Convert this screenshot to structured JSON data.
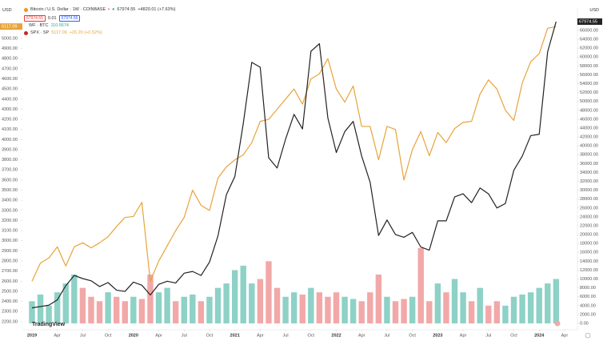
{
  "header": {
    "currency_left": "USD",
    "currency_right": "USD",
    "symbol": "Bitcoin / U.S. Dollar · 1W · COINBASE",
    "change": "+4820.01 (+7.63%)",
    "bid": "67974.55",
    "spread": "0.01",
    "ask": "67974.56",
    "overlay1": "WF · BTC",
    "overlay1_value": "110.5674",
    "overlay2": "SPX · SP",
    "overlay2_change": "+26.20 (+0.52%)",
    "logo": "TradingView"
  },
  "chart_data": {
    "type": "line",
    "x": [
      "2019-01",
      "2019-02",
      "2019-03",
      "2019-04",
      "2019-05",
      "2019-06",
      "2019-07",
      "2019-08",
      "2019-09",
      "2019-10",
      "2019-11",
      "2019-12",
      "2020-01",
      "2020-02",
      "2020-03",
      "2020-04",
      "2020-05",
      "2020-06",
      "2020-07",
      "2020-08",
      "2020-09",
      "2020-10",
      "2020-11",
      "2020-12",
      "2021-01",
      "2021-02",
      "2021-03",
      "2021-04",
      "2021-05",
      "2021-06",
      "2021-07",
      "2021-08",
      "2021-09",
      "2021-10",
      "2021-11",
      "2021-12",
      "2022-01",
      "2022-02",
      "2022-03",
      "2022-04",
      "2022-05",
      "2022-06",
      "2022-07",
      "2022-08",
      "2022-09",
      "2022-10",
      "2022-11",
      "2022-12",
      "2023-01",
      "2023-02",
      "2023-03",
      "2023-04",
      "2023-05",
      "2023-06",
      "2023-07",
      "2023-08",
      "2023-09",
      "2023-10",
      "2023-11",
      "2023-12",
      "2024-01",
      "2024-02",
      "2024-03"
    ],
    "xlim": [
      "2018-12",
      "2024-05"
    ],
    "xticks": [
      {
        "value": "2019-01",
        "label": "2019"
      },
      {
        "value": "2019-04",
        "label": "Apr"
      },
      {
        "value": "2019-07",
        "label": "Jul"
      },
      {
        "value": "2019-10",
        "label": "Oct"
      },
      {
        "value": "2020-01",
        "label": "2020"
      },
      {
        "value": "2020-04",
        "label": "Apr"
      },
      {
        "value": "2020-07",
        "label": "Jul"
      },
      {
        "value": "2020-10",
        "label": "Oct"
      },
      {
        "value": "2021-01",
        "label": "2021"
      },
      {
        "value": "2021-04",
        "label": "Apr"
      },
      {
        "value": "2021-07",
        "label": "Jul"
      },
      {
        "value": "2021-10",
        "label": "Oct"
      },
      {
        "value": "2022-01",
        "label": "2022"
      },
      {
        "value": "2022-04",
        "label": "Apr"
      },
      {
        "value": "2022-07",
        "label": "Jul"
      },
      {
        "value": "2022-10",
        "label": "Oct"
      },
      {
        "value": "2023-01",
        "label": "2023"
      },
      {
        "value": "2023-04",
        "label": "Apr"
      },
      {
        "value": "2023-07",
        "label": "Jul"
      },
      {
        "value": "2023-10",
        "label": "Oct"
      },
      {
        "value": "2024-01",
        "label": "2024"
      },
      {
        "value": "2024-04",
        "label": "Apr"
      }
    ],
    "ylim": [
      2120,
      5158
    ],
    "yticks": [
      {
        "value": 2200,
        "label": "2200.00"
      },
      {
        "value": 2300,
        "label": "2300.00"
      },
      {
        "value": 2400,
        "label": "2400.00"
      },
      {
        "value": 2500,
        "label": "2500.00"
      },
      {
        "value": 2600,
        "label": "2600.00"
      },
      {
        "value": 2700,
        "label": "2700.00"
      },
      {
        "value": 2800,
        "label": "2800.00"
      },
      {
        "value": 2900,
        "label": "2900.00"
      },
      {
        "value": 3000,
        "label": "3000.00"
      },
      {
        "value": 3100,
        "label": "3100.00"
      },
      {
        "value": 3200,
        "label": "3200.00"
      },
      {
        "value": 3300,
        "label": "3300.00"
      },
      {
        "value": 3400,
        "label": "3400.00"
      },
      {
        "value": 3500,
        "label": "3500.00"
      },
      {
        "value": 3600,
        "label": "3600.00"
      },
      {
        "value": 3700,
        "label": "3700.00"
      },
      {
        "value": 3800,
        "label": "3800.00"
      },
      {
        "value": 3900,
        "label": "3900.00"
      },
      {
        "value": 4000,
        "label": "4000.00"
      },
      {
        "value": 4100,
        "label": "4100.00"
      },
      {
        "value": 4200,
        "label": "4200.00"
      },
      {
        "value": 4300,
        "label": "4300.00"
      },
      {
        "value": 4400,
        "label": "4400.00"
      },
      {
        "value": 4500,
        "label": "4500.00"
      },
      {
        "value": 4600,
        "label": "4600.00"
      },
      {
        "value": 4700,
        "label": "4700.00"
      },
      {
        "value": 4800,
        "label": "4800.00"
      },
      {
        "value": 4900,
        "label": "4900.00"
      },
      {
        "value": 5000,
        "label": "5000.00"
      }
    ],
    "y2lim": [
      -1440,
      67800
    ],
    "y2ticks": [
      {
        "value": 0,
        "label": "0.00"
      },
      {
        "value": 2000,
        "label": "2000.00"
      },
      {
        "value": 4000,
        "label": "4000.00"
      },
      {
        "value": 6000,
        "label": "6000.00"
      },
      {
        "value": 8000,
        "label": "8000.00"
      },
      {
        "value": 10000,
        "label": "10000.00"
      },
      {
        "value": 12000,
        "label": "12000.00"
      },
      {
        "value": 14000,
        "label": "14000.00"
      },
      {
        "value": 16000,
        "label": "16000.00"
      },
      {
        "value": 18000,
        "label": "18000.00"
      },
      {
        "value": 20000,
        "label": "20000.00"
      },
      {
        "value": 22000,
        "label": "22000.00"
      },
      {
        "value": 24000,
        "label": "24000.00"
      },
      {
        "value": 26000,
        "label": "26000.00"
      },
      {
        "value": 28000,
        "label": "28000.00"
      },
      {
        "value": 30000,
        "label": "30000.00"
      },
      {
        "value": 32000,
        "label": "32000.00"
      },
      {
        "value": 34000,
        "label": "34000.00"
      },
      {
        "value": 36000,
        "label": "36000.00"
      },
      {
        "value": 38000,
        "label": "38000.00"
      },
      {
        "value": 40000,
        "label": "40000.00"
      },
      {
        "value": 42000,
        "label": "42000.00"
      },
      {
        "value": 44000,
        "label": "44000.00"
      },
      {
        "value": 46000,
        "label": "46000.00"
      },
      {
        "value": 48000,
        "label": "48000.00"
      },
      {
        "value": 50000,
        "label": "50000.00"
      },
      {
        "value": 52000,
        "label": "52000.00"
      },
      {
        "value": 54000,
        "label": "54000.00"
      },
      {
        "value": 56000,
        "label": "56000.00"
      },
      {
        "value": 58000,
        "label": "58000.00"
      },
      {
        "value": 60000,
        "label": "60000.00"
      },
      {
        "value": 62000,
        "label": "62000.00"
      },
      {
        "value": 64000,
        "label": "64000.00"
      },
      {
        "value": 66000,
        "label": "66000.00"
      }
    ],
    "series": [
      {
        "name": "SPX",
        "color": "#e8a33a",
        "axis": "y",
        "values": [
          2600,
          2780,
          2830,
          2940,
          2750,
          2940,
          2980,
          2930,
          2980,
          3040,
          3140,
          3230,
          3240,
          3380,
          2600,
          2800,
          2950,
          3100,
          3230,
          3500,
          3350,
          3300,
          3620,
          3730,
          3800,
          3850,
          3970,
          4180,
          4200,
          4300,
          4400,
          4500,
          4350,
          4600,
          4650,
          4800,
          4500,
          4370,
          4530,
          4130,
          4130,
          3800,
          4130,
          4100,
          3600,
          3900,
          4080,
          3840,
          4070,
          3970,
          4110,
          4170,
          4180,
          4450,
          4590,
          4500,
          4290,
          4190,
          4560,
          4770,
          4850,
          5100,
          5117.09
        ]
      },
      {
        "name": "Bitcoin",
        "color": "#222222",
        "axis": "y2",
        "values": [
          3500,
          3800,
          4100,
          5300,
          8500,
          10800,
          10100,
          9600,
          8300,
          9200,
          7500,
          7200,
          9300,
          8600,
          6400,
          8800,
          9500,
          9100,
          11300,
          11700,
          10800,
          13800,
          19700,
          29000,
          33100,
          45100,
          58800,
          57700,
          37300,
          35000,
          41500,
          47100,
          43800,
          61300,
          63000,
          46300,
          38500,
          43200,
          45500,
          37700,
          31800,
          19800,
          23300,
          20000,
          19400,
          20500,
          17200,
          16500,
          23100,
          23100,
          28500,
          29200,
          27200,
          30500,
          29200,
          26000,
          27000,
          34500,
          37700,
          42300,
          42600,
          61200,
          67974.55
        ]
      }
    ],
    "volume": {
      "axis": "y2",
      "values": [
        5000,
        6500,
        4000,
        7000,
        9000,
        11000,
        8000,
        6000,
        5000,
        7000,
        6000,
        5000,
        6000,
        5500,
        11000,
        7000,
        8000,
        5000,
        6000,
        6500,
        5000,
        6000,
        8000,
        9000,
        12000,
        13000,
        9000,
        10000,
        14000,
        8000,
        6000,
        7000,
        6500,
        8000,
        7000,
        6000,
        7000,
        6000,
        5500,
        5000,
        7000,
        11000,
        6000,
        5000,
        5500,
        6000,
        17000,
        5000,
        9000,
        7000,
        10000,
        7000,
        5000,
        8000,
        4000,
        5000,
        4000,
        6000,
        6500,
        7000,
        8000,
        9000,
        10000
      ],
      "colors": [
        "#8ed1c6",
        "#8ed1c6",
        "#8ed1c6",
        "#8ed1c6",
        "#8ed1c6",
        "#8ed1c6",
        "#f2a8a8",
        "#f2a8a8",
        "#f2a8a8",
        "#8ed1c6",
        "#f2a8a8",
        "#f2a8a8",
        "#8ed1c6",
        "#f2a8a8",
        "#f2a8a8",
        "#8ed1c6",
        "#8ed1c6",
        "#f2a8a8",
        "#8ed1c6",
        "#8ed1c6",
        "#f2a8a8",
        "#8ed1c6",
        "#8ed1c6",
        "#8ed1c6",
        "#8ed1c6",
        "#8ed1c6",
        "#8ed1c6",
        "#f2a8a8",
        "#f2a8a8",
        "#f2a8a8",
        "#8ed1c6",
        "#8ed1c6",
        "#f2a8a8",
        "#8ed1c6",
        "#f2a8a8",
        "#f2a8a8",
        "#f2a8a8",
        "#8ed1c6",
        "#8ed1c6",
        "#f2a8a8",
        "#f2a8a8",
        "#f2a8a8",
        "#8ed1c6",
        "#f2a8a8",
        "#f2a8a8",
        "#8ed1c6",
        "#f2a8a8",
        "#f2a8a8",
        "#8ed1c6",
        "#f2a8a8",
        "#8ed1c6",
        "#8ed1c6",
        "#f2a8a8",
        "#8ed1c6",
        "#f2a8a8",
        "#f2a8a8",
        "#8ed1c6",
        "#8ed1c6",
        "#8ed1c6",
        "#8ed1c6",
        "#8ed1c6",
        "#8ed1c6",
        "#8ed1c6"
      ]
    }
  }
}
